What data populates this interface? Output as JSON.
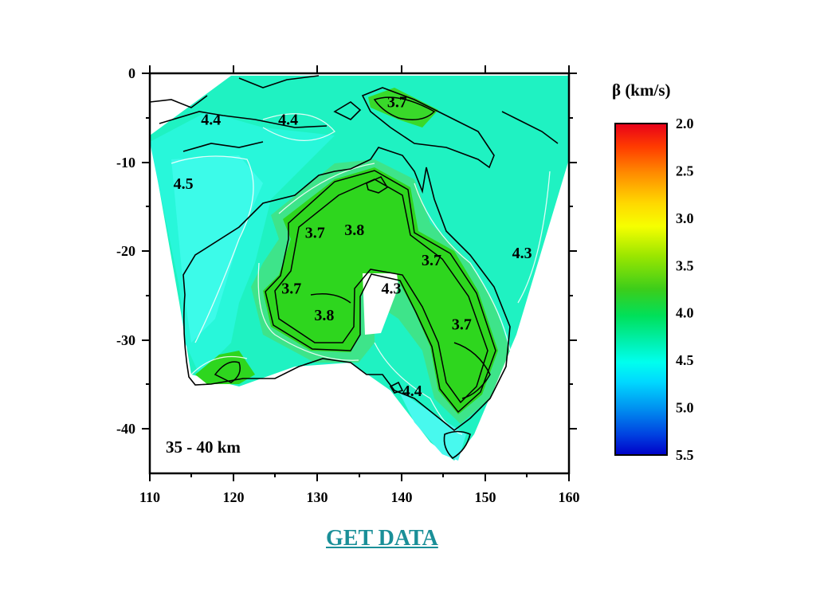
{
  "map": {
    "depth_label": "35 - 40 km",
    "x_ticks": [
      "110",
      "120",
      "130",
      "140",
      "150",
      "160"
    ],
    "y_ticks": [
      "0",
      "-10",
      "-20",
      "-30",
      "-40"
    ],
    "x_range": [
      110,
      160
    ],
    "y_range": [
      -45,
      0
    ],
    "contour_labels": [
      {
        "text": "4.4",
        "lon": 117.3,
        "lat": -5.8
      },
      {
        "text": "4.4",
        "lon": 126.5,
        "lat": -5.8
      },
      {
        "text": "3.7",
        "lon": 139.5,
        "lat": -3.8
      },
      {
        "text": "4.5",
        "lon": 114.0,
        "lat": -13.0
      },
      {
        "text": "3.7",
        "lon": 129.7,
        "lat": -18.5
      },
      {
        "text": "3.8",
        "lon": 134.4,
        "lat": -18.2
      },
      {
        "text": "4.3",
        "lon": 154.4,
        "lat": -20.8
      },
      {
        "text": "3.7",
        "lon": 143.6,
        "lat": -21.6
      },
      {
        "text": "3.7",
        "lon": 126.9,
        "lat": -24.8
      },
      {
        "text": "4.3",
        "lon": 138.8,
        "lat": -24.8
      },
      {
        "text": "3.8",
        "lon": 130.8,
        "lat": -27.8
      },
      {
        "text": "3.7",
        "lon": 147.2,
        "lat": -28.8
      },
      {
        "text": "4.4",
        "lon": 141.3,
        "lat": -36.3
      }
    ]
  },
  "colorbar": {
    "title": "β (km/s)",
    "ticks": [
      "2.0",
      "2.5",
      "3.0",
      "3.5",
      "4.0",
      "4.5",
      "5.0",
      "5.5"
    ],
    "range": [
      2.0,
      5.5
    ]
  },
  "link": {
    "label": "GET DATA"
  }
}
